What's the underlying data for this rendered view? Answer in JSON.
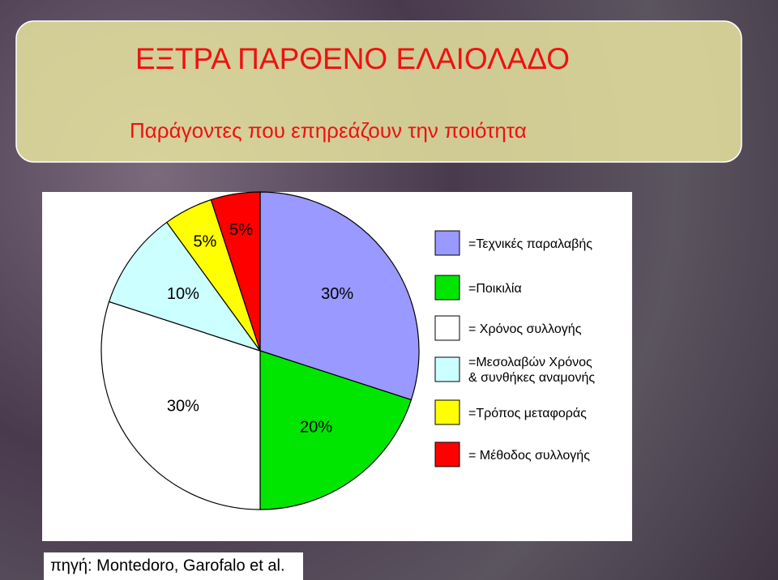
{
  "chart_data": {
    "type": "pie",
    "title": "ΕΞΤΡΑ ΠΑΡΘΕΝΟ ΕΛΑΙΟΛΑΔΟ",
    "subtitle": "Παράγοντες που επηρεάζουν την ποιότητα",
    "series": [
      {
        "name": "=Τεχνικές παραλαβής",
        "color": "#9999ff",
        "values": [
          30
        ],
        "value_labels": [
          "30%"
        ]
      },
      {
        "name": "=Ποικιλία",
        "color": "#00e600",
        "values": [
          20
        ],
        "value_labels": [
          "20%"
        ]
      },
      {
        "name": "= Χρόνος συλλογής",
        "color": "#ffffff",
        "values": [
          30
        ],
        "value_labels": [
          "30%"
        ]
      },
      {
        "name": "=Μεσολαβών Χρόνος\n& συνθήκες αναμονής",
        "color": "#ccffff",
        "values": [
          10
        ],
        "value_labels": [
          "10%"
        ]
      },
      {
        "name": "=Τρόπος  μεταφοράς",
        "color": "#ffff00",
        "values": [
          5
        ],
        "value_labels": [
          "5%"
        ]
      },
      {
        "name": "= Μέθοδος συλλογής",
        "color": "#ff0000",
        "values": [
          5
        ],
        "value_labels": [
          "5%"
        ]
      }
    ],
    "source": "πηγή: Montedoro, Garofalo et al."
  }
}
